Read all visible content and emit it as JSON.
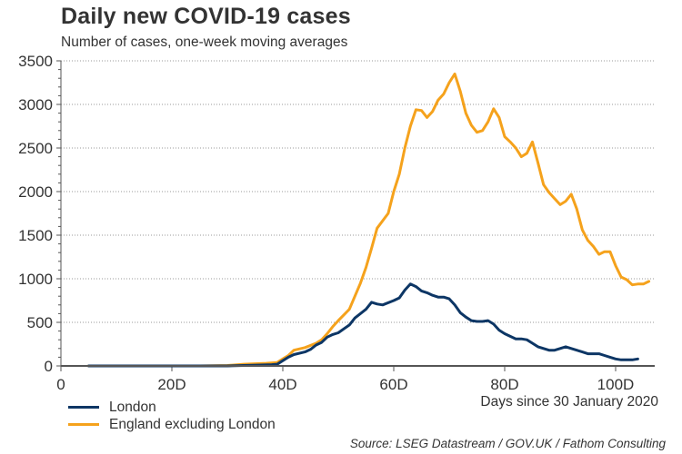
{
  "chart_data": {
    "type": "line",
    "title": "Daily new COVID-19 cases",
    "subtitle": "Number of cases, one-week moving averages",
    "xlabel": "Days since 30 January 2020",
    "ylabel": "",
    "xlim": [
      0,
      107
    ],
    "ylim": [
      0,
      3500
    ],
    "x_ticks": [
      0,
      20,
      40,
      60,
      80,
      100
    ],
    "x_tick_labels": [
      "0",
      "20D",
      "40D",
      "60D",
      "80D",
      "100D"
    ],
    "y_ticks": [
      0,
      500,
      1000,
      1500,
      2000,
      2500,
      3000,
      3500
    ],
    "y_tick_labels": [
      "0",
      "500",
      "1000",
      "1500",
      "2000",
      "2500",
      "3000",
      "3500"
    ],
    "grid": "horizontal-dotted",
    "legend_position": "bottom-left",
    "source": "Source: LSEG Datastream / GOV.UK / Fathom Consulting",
    "series": [
      {
        "name": "London",
        "color": "#0d3665",
        "x": [
          5,
          10,
          15,
          20,
          25,
          30,
          33,
          36,
          38,
          39,
          40,
          41,
          42,
          44,
          45,
          46,
          47,
          48,
          49,
          50,
          52,
          53,
          55,
          56,
          57,
          58,
          60,
          61,
          62,
          63,
          64,
          65,
          66,
          67,
          68,
          69,
          70,
          71,
          72,
          73,
          74,
          75,
          76,
          77,
          78,
          79,
          80,
          81,
          82,
          83,
          84,
          85,
          86,
          87,
          88,
          89,
          90,
          91,
          92,
          93,
          94,
          95,
          96,
          97,
          98,
          99,
          100,
          101,
          102,
          103,
          104
        ],
        "values": [
          0,
          0,
          0,
          0,
          0,
          0,
          5,
          10,
          15,
          20,
          60,
          100,
          130,
          160,
          190,
          240,
          270,
          330,
          360,
          380,
          470,
          550,
          650,
          730,
          710,
          700,
          750,
          780,
          870,
          940,
          910,
          860,
          840,
          810,
          790,
          790,
          770,
          700,
          610,
          560,
          520,
          510,
          510,
          520,
          480,
          410,
          370,
          340,
          310,
          310,
          300,
          260,
          220,
          200,
          180,
          180,
          200,
          220,
          200,
          180,
          160,
          140,
          140,
          140,
          120,
          100,
          80,
          70,
          70,
          70,
          80
        ]
      },
      {
        "name": "England excluding London",
        "color": "#f5a21c",
        "x": [
          5,
          10,
          15,
          20,
          25,
          30,
          33,
          35,
          37,
          39,
          40,
          41,
          42,
          44,
          46,
          47,
          48,
          49,
          50,
          52,
          53,
          54,
          55,
          56,
          57,
          59,
          60,
          61,
          62,
          63,
          64,
          65,
          66,
          67,
          68,
          69,
          70,
          71,
          72,
          73,
          74,
          75,
          76,
          77,
          78,
          79,
          80,
          81,
          82,
          83,
          84,
          85,
          86,
          87,
          88,
          89,
          90,
          91,
          92,
          93,
          94,
          95,
          96,
          97,
          98,
          99,
          100,
          101,
          102,
          103,
          104,
          105,
          106
        ],
        "values": [
          0,
          0,
          0,
          0,
          0,
          5,
          20,
          25,
          30,
          40,
          80,
          120,
          180,
          210,
          260,
          300,
          370,
          450,
          520,
          650,
          800,
          950,
          1130,
          1350,
          1580,
          1750,
          2000,
          2200,
          2500,
          2750,
          2940,
          2930,
          2850,
          2920,
          3050,
          3120,
          3250,
          3350,
          3150,
          2900,
          2760,
          2680,
          2700,
          2800,
          2950,
          2850,
          2630,
          2570,
          2500,
          2400,
          2440,
          2570,
          2330,
          2080,
          1990,
          1920,
          1850,
          1890,
          1970,
          1800,
          1560,
          1440,
          1370,
          1280,
          1310,
          1310,
          1150,
          1020,
          990,
          930,
          940,
          940,
          970
        ]
      }
    ]
  }
}
